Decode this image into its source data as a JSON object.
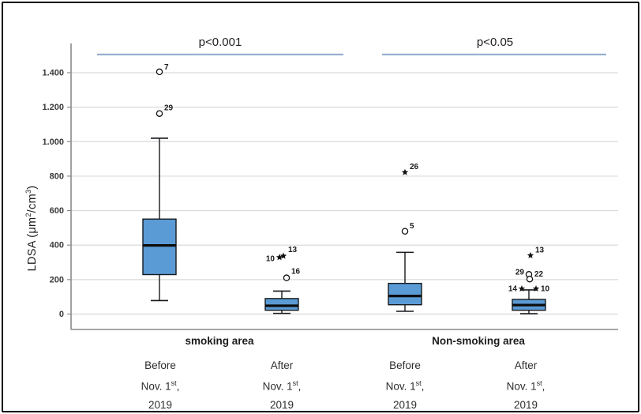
{
  "chart_data": {
    "type": "boxplot",
    "title": "",
    "ylabel": {
      "pre": "LDSA (μm",
      "sup1": "2",
      "mid": "/cm",
      "sup2": "3",
      "post": ")"
    },
    "ylim": [
      0,
      1500
    ],
    "grid": true,
    "yticks": [
      {
        "v": 0,
        "label": "0"
      },
      {
        "v": 200,
        "label": "200"
      },
      {
        "v": 400,
        "label": "400"
      },
      {
        "v": 600,
        "label": "600"
      },
      {
        "v": 800,
        "label": "800"
      },
      {
        "v": 1000,
        "label": "1.000"
      },
      {
        "v": 1200,
        "label": "1.200"
      },
      {
        "v": 1400,
        "label": "1.400"
      }
    ],
    "groups": [
      {
        "label": "smoking area",
        "x": 278
      },
      {
        "label": "Non-smoking area",
        "x": 606
      }
    ],
    "xticks": [
      {
        "line1": "Before",
        "line2_pre": "Nov. 1",
        "line2_sup": "st",
        "line2_post": ",",
        "line3": "2019",
        "x": 203
      },
      {
        "line1": "After",
        "line2_pre": "Nov. 1",
        "line2_sup": "st",
        "line2_post": ",",
        "line3": "2019",
        "x": 357
      },
      {
        "line1": "Before",
        "line2_pre": "Nov. 1",
        "line2_sup": "st",
        "line2_post": ",",
        "line3": "2019",
        "x": 513
      },
      {
        "line1": "After",
        "line2_pre": "Nov. 1",
        "line2_sup": "st",
        "line2_post": ",",
        "line3": "2019",
        "x": 666
      }
    ],
    "boxes": [
      {
        "group": 0,
        "condition": "Before Nov. 1st, 2019",
        "x": 202,
        "low": 78,
        "q1": 229,
        "median": 398,
        "q3": 551,
        "high": 1020,
        "outliers": [
          {
            "m": "circle",
            "v": 1405,
            "label": "7",
            "side": "right",
            "ly": -3
          },
          {
            "m": "circle",
            "v": 1163,
            "label": "29",
            "side": "right",
            "ly": -4
          }
        ]
      },
      {
        "group": 0,
        "condition": "After Nov. 1st, 2019",
        "x": 357,
        "low": 4,
        "q1": 22,
        "median": 48,
        "q3": 90,
        "high": 133,
        "outliers": [
          {
            "m": "star",
            "v": 337,
            "dx": 2,
            "label": "13",
            "side": "right",
            "ly": -5
          },
          {
            "m": "star",
            "v": 329,
            "dx": -3,
            "label": "10",
            "side": "left",
            "ly": 5
          },
          {
            "m": "circle",
            "v": 210,
            "dx": 6,
            "label": "16",
            "side": "right",
            "ly": -5
          }
        ]
      },
      {
        "group": 1,
        "condition": "Before Nov. 1st, 2019",
        "x": 513,
        "low": 16,
        "q1": 54,
        "median": 105,
        "q3": 178,
        "high": 358,
        "outliers": [
          {
            "m": "star",
            "v": 822,
            "label": "26",
            "side": "right",
            "ly": -4
          },
          {
            "m": "circle",
            "v": 480,
            "label": "5",
            "side": "right",
            "ly": -4
          }
        ]
      },
      {
        "group": 1,
        "condition": "After Nov. 1st, 2019",
        "x": 670,
        "low": 2,
        "q1": 22,
        "median": 52,
        "q3": 85,
        "high": 140,
        "outliers": [
          {
            "m": "star",
            "v": 340,
            "dx": 2,
            "label": "13",
            "side": "right",
            "ly": -4
          },
          {
            "m": "circle",
            "v": 230,
            "label": "29",
            "side": "left",
            "ly": 0
          },
          {
            "m": "circle",
            "v": 203,
            "dx": 1,
            "label": "22",
            "side": "right",
            "ly": -3
          },
          {
            "m": "star",
            "v": 147,
            "dx": -9,
            "label": "14",
            "side": "left",
            "ly": 3
          },
          {
            "m": "star",
            "v": 147,
            "dx": 9,
            "label": "10",
            "side": "right",
            "ly": 3
          }
        ]
      }
    ],
    "annotations": [
      {
        "label": "p<0.001",
        "x1": 123,
        "x2": 435,
        "line_y": 69,
        "text_x": 279,
        "text_y": 58
      },
      {
        "label": "p<0.05",
        "x1": 484,
        "x2": 768,
        "line_y": 69,
        "text_x": 627,
        "text_y": 58
      }
    ],
    "colors": {
      "box_fill": "#5b9bd5",
      "box_stroke": "#16191d",
      "median": "#0d0d0d",
      "grid": "#d9d9d9",
      "axis": "#8a8a8a",
      "sig_line": "#96afd0",
      "text": "#3a3a3a",
      "marker": "#111111"
    }
  }
}
